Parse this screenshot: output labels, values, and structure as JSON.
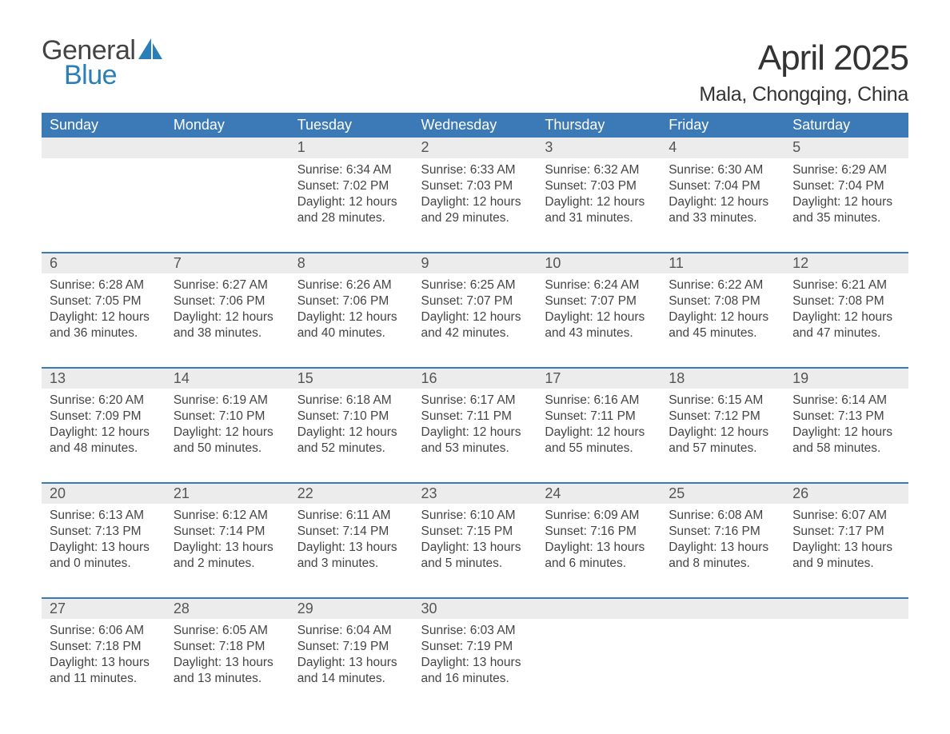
{
  "brand": {
    "word1": "General",
    "word2": "Blue",
    "color_general": "#444444",
    "color_blue": "#2a7fb8",
    "sail_color": "#2a7fb8"
  },
  "title": "April 2025",
  "location": "Mala, Chongqing, China",
  "colors": {
    "header_bg": "#3b79b7",
    "header_text": "#ffffff",
    "daynum_bg": "#ececec",
    "border_top": "#3b79b7",
    "body_bg": "#ffffff",
    "text": "#444444"
  },
  "typography": {
    "title_fontsize": 44,
    "location_fontsize": 25,
    "header_fontsize": 18,
    "daynum_fontsize": 18,
    "detail_fontsize": 15.5
  },
  "day_headers": [
    "Sunday",
    "Monday",
    "Tuesday",
    "Wednesday",
    "Thursday",
    "Friday",
    "Saturday"
  ],
  "weeks": [
    {
      "nums": [
        "",
        "",
        "1",
        "2",
        "3",
        "4",
        "5"
      ],
      "details": [
        {
          "sunrise": "",
          "sunset": "",
          "daylight1": "",
          "daylight2": ""
        },
        {
          "sunrise": "",
          "sunset": "",
          "daylight1": "",
          "daylight2": ""
        },
        {
          "sunrise": "Sunrise: 6:34 AM",
          "sunset": "Sunset: 7:02 PM",
          "daylight1": "Daylight: 12 hours",
          "daylight2": "and 28 minutes."
        },
        {
          "sunrise": "Sunrise: 6:33 AM",
          "sunset": "Sunset: 7:03 PM",
          "daylight1": "Daylight: 12 hours",
          "daylight2": "and 29 minutes."
        },
        {
          "sunrise": "Sunrise: 6:32 AM",
          "sunset": "Sunset: 7:03 PM",
          "daylight1": "Daylight: 12 hours",
          "daylight2": "and 31 minutes."
        },
        {
          "sunrise": "Sunrise: 6:30 AM",
          "sunset": "Sunset: 7:04 PM",
          "daylight1": "Daylight: 12 hours",
          "daylight2": "and 33 minutes."
        },
        {
          "sunrise": "Sunrise: 6:29 AM",
          "sunset": "Sunset: 7:04 PM",
          "daylight1": "Daylight: 12 hours",
          "daylight2": "and 35 minutes."
        }
      ]
    },
    {
      "nums": [
        "6",
        "7",
        "8",
        "9",
        "10",
        "11",
        "12"
      ],
      "details": [
        {
          "sunrise": "Sunrise: 6:28 AM",
          "sunset": "Sunset: 7:05 PM",
          "daylight1": "Daylight: 12 hours",
          "daylight2": "and 36 minutes."
        },
        {
          "sunrise": "Sunrise: 6:27 AM",
          "sunset": "Sunset: 7:06 PM",
          "daylight1": "Daylight: 12 hours",
          "daylight2": "and 38 minutes."
        },
        {
          "sunrise": "Sunrise: 6:26 AM",
          "sunset": "Sunset: 7:06 PM",
          "daylight1": "Daylight: 12 hours",
          "daylight2": "and 40 minutes."
        },
        {
          "sunrise": "Sunrise: 6:25 AM",
          "sunset": "Sunset: 7:07 PM",
          "daylight1": "Daylight: 12 hours",
          "daylight2": "and 42 minutes."
        },
        {
          "sunrise": "Sunrise: 6:24 AM",
          "sunset": "Sunset: 7:07 PM",
          "daylight1": "Daylight: 12 hours",
          "daylight2": "and 43 minutes."
        },
        {
          "sunrise": "Sunrise: 6:22 AM",
          "sunset": "Sunset: 7:08 PM",
          "daylight1": "Daylight: 12 hours",
          "daylight2": "and 45 minutes."
        },
        {
          "sunrise": "Sunrise: 6:21 AM",
          "sunset": "Sunset: 7:08 PM",
          "daylight1": "Daylight: 12 hours",
          "daylight2": "and 47 minutes."
        }
      ]
    },
    {
      "nums": [
        "13",
        "14",
        "15",
        "16",
        "17",
        "18",
        "19"
      ],
      "details": [
        {
          "sunrise": "Sunrise: 6:20 AM",
          "sunset": "Sunset: 7:09 PM",
          "daylight1": "Daylight: 12 hours",
          "daylight2": "and 48 minutes."
        },
        {
          "sunrise": "Sunrise: 6:19 AM",
          "sunset": "Sunset: 7:10 PM",
          "daylight1": "Daylight: 12 hours",
          "daylight2": "and 50 minutes."
        },
        {
          "sunrise": "Sunrise: 6:18 AM",
          "sunset": "Sunset: 7:10 PM",
          "daylight1": "Daylight: 12 hours",
          "daylight2": "and 52 minutes."
        },
        {
          "sunrise": "Sunrise: 6:17 AM",
          "sunset": "Sunset: 7:11 PM",
          "daylight1": "Daylight: 12 hours",
          "daylight2": "and 53 minutes."
        },
        {
          "sunrise": "Sunrise: 6:16 AM",
          "sunset": "Sunset: 7:11 PM",
          "daylight1": "Daylight: 12 hours",
          "daylight2": "and 55 minutes."
        },
        {
          "sunrise": "Sunrise: 6:15 AM",
          "sunset": "Sunset: 7:12 PM",
          "daylight1": "Daylight: 12 hours",
          "daylight2": "and 57 minutes."
        },
        {
          "sunrise": "Sunrise: 6:14 AM",
          "sunset": "Sunset: 7:13 PM",
          "daylight1": "Daylight: 12 hours",
          "daylight2": "and 58 minutes."
        }
      ]
    },
    {
      "nums": [
        "20",
        "21",
        "22",
        "23",
        "24",
        "25",
        "26"
      ],
      "details": [
        {
          "sunrise": "Sunrise: 6:13 AM",
          "sunset": "Sunset: 7:13 PM",
          "daylight1": "Daylight: 13 hours",
          "daylight2": "and 0 minutes."
        },
        {
          "sunrise": "Sunrise: 6:12 AM",
          "sunset": "Sunset: 7:14 PM",
          "daylight1": "Daylight: 13 hours",
          "daylight2": "and 2 minutes."
        },
        {
          "sunrise": "Sunrise: 6:11 AM",
          "sunset": "Sunset: 7:14 PM",
          "daylight1": "Daylight: 13 hours",
          "daylight2": "and 3 minutes."
        },
        {
          "sunrise": "Sunrise: 6:10 AM",
          "sunset": "Sunset: 7:15 PM",
          "daylight1": "Daylight: 13 hours",
          "daylight2": "and 5 minutes."
        },
        {
          "sunrise": "Sunrise: 6:09 AM",
          "sunset": "Sunset: 7:16 PM",
          "daylight1": "Daylight: 13 hours",
          "daylight2": "and 6 minutes."
        },
        {
          "sunrise": "Sunrise: 6:08 AM",
          "sunset": "Sunset: 7:16 PM",
          "daylight1": "Daylight: 13 hours",
          "daylight2": "and 8 minutes."
        },
        {
          "sunrise": "Sunrise: 6:07 AM",
          "sunset": "Sunset: 7:17 PM",
          "daylight1": "Daylight: 13 hours",
          "daylight2": "and 9 minutes."
        }
      ]
    },
    {
      "nums": [
        "27",
        "28",
        "29",
        "30",
        "",
        "",
        ""
      ],
      "details": [
        {
          "sunrise": "Sunrise: 6:06 AM",
          "sunset": "Sunset: 7:18 PM",
          "daylight1": "Daylight: 13 hours",
          "daylight2": "and 11 minutes."
        },
        {
          "sunrise": "Sunrise: 6:05 AM",
          "sunset": "Sunset: 7:18 PM",
          "daylight1": "Daylight: 13 hours",
          "daylight2": "and 13 minutes."
        },
        {
          "sunrise": "Sunrise: 6:04 AM",
          "sunset": "Sunset: 7:19 PM",
          "daylight1": "Daylight: 13 hours",
          "daylight2": "and 14 minutes."
        },
        {
          "sunrise": "Sunrise: 6:03 AM",
          "sunset": "Sunset: 7:19 PM",
          "daylight1": "Daylight: 13 hours",
          "daylight2": "and 16 minutes."
        },
        {
          "sunrise": "",
          "sunset": "",
          "daylight1": "",
          "daylight2": ""
        },
        {
          "sunrise": "",
          "sunset": "",
          "daylight1": "",
          "daylight2": ""
        },
        {
          "sunrise": "",
          "sunset": "",
          "daylight1": "",
          "daylight2": ""
        }
      ]
    }
  ]
}
